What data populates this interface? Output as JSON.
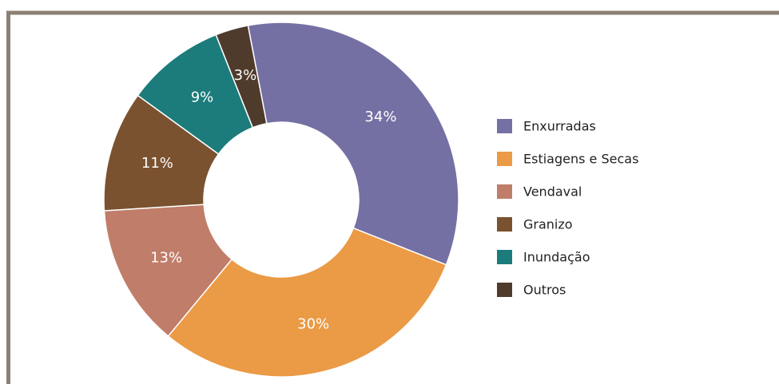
{
  "chart_data": {
    "type": "pie",
    "categories": [
      "Enxurradas",
      "Estiagens e Secas",
      "Vendaval",
      "Granizo",
      "Inundação",
      "Outros"
    ],
    "values": [
      34,
      30,
      13,
      11,
      9,
      3
    ],
    "value_labels": [
      "34%",
      "30%",
      "13%",
      "11%",
      "9%",
      "3%"
    ],
    "colors": [
      "#7570a3",
      "#eb9a45",
      "#c07d69",
      "#7a5230",
      "#1c7b7b",
      "#4f3b2c"
    ],
    "donut": true,
    "legend": "right"
  }
}
